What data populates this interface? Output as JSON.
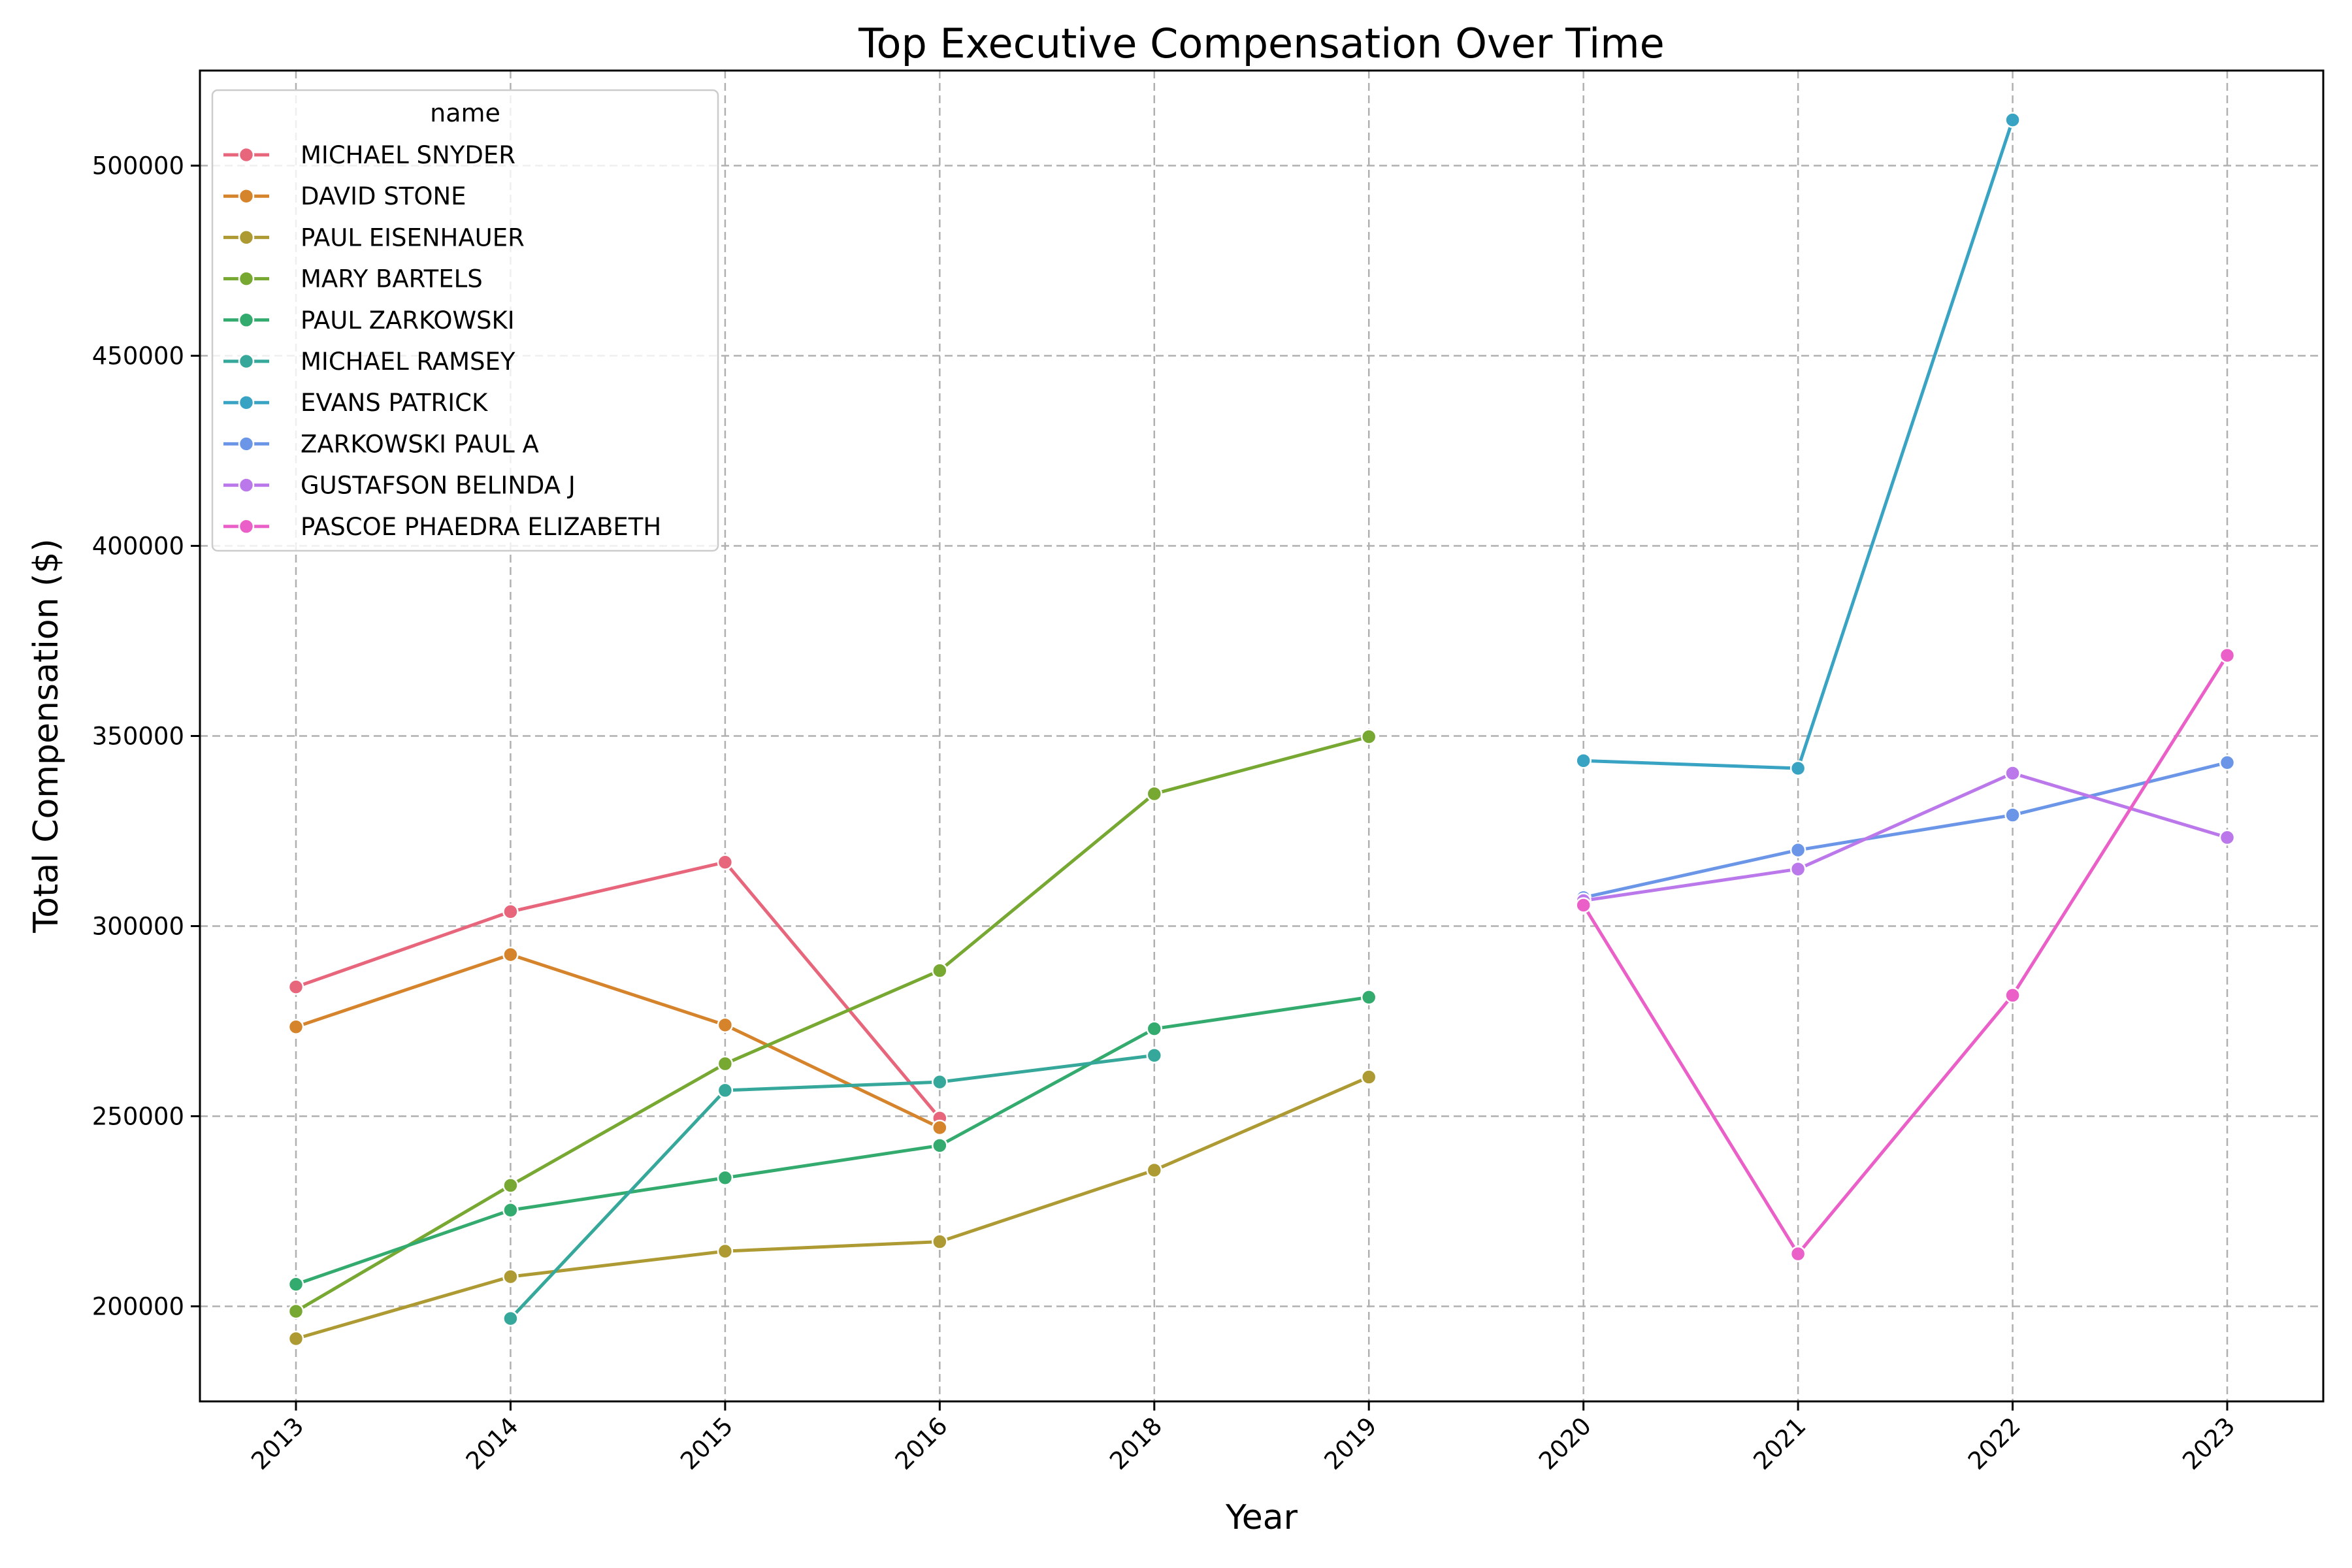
{
  "chart_data": {
    "type": "line",
    "title": "Top Executive Compensation Over Time",
    "xlabel": "Year",
    "ylabel": "Total Compensation ($)",
    "categories": [
      "2013",
      "2014",
      "2015",
      "2016",
      "2018",
      "2019",
      "2020",
      "2021",
      "2022",
      "2023"
    ],
    "ylim": [
      175000,
      525000
    ],
    "yticks": [
      200000,
      250000,
      300000,
      350000,
      400000,
      450000,
      500000
    ],
    "grid": true,
    "legend": {
      "title": "name",
      "placement": "top-left"
    },
    "series": [
      {
        "name": "MICHAEL SNYDER",
        "color": "#e8667c",
        "points": [
          [
            "2013",
            284000
          ],
          [
            "2014",
            303800
          ],
          [
            "2015",
            316800
          ],
          [
            "2016",
            249500
          ]
        ]
      },
      {
        "name": "DAVID STONE",
        "color": "#d6842c",
        "points": [
          [
            "2013",
            273500
          ],
          [
            "2014",
            292500
          ],
          [
            "2015",
            274000
          ],
          [
            "2016",
            247000
          ]
        ]
      },
      {
        "name": "PAUL EISENHAUER",
        "color": "#ae9a33",
        "points": [
          [
            "2013",
            191500
          ],
          [
            "2014",
            207800
          ],
          [
            "2015",
            214500
          ],
          [
            "2016",
            217000
          ],
          [
            "2018",
            235800
          ],
          [
            "2019",
            260300
          ]
        ]
      },
      {
        "name": "MARY BARTELS",
        "color": "#77a832",
        "points": [
          [
            "2013",
            198700
          ],
          [
            "2014",
            231800
          ],
          [
            "2015",
            263800
          ],
          [
            "2016",
            288300
          ],
          [
            "2018",
            334800
          ],
          [
            "2019",
            349800
          ]
        ]
      },
      {
        "name": "PAUL ZARKOWSKI",
        "color": "#34ab6e",
        "points": [
          [
            "2013",
            205800
          ],
          [
            "2014",
            225300
          ],
          [
            "2015",
            233800
          ],
          [
            "2016",
            242300
          ],
          [
            "2018",
            273000
          ],
          [
            "2019",
            281300
          ]
        ]
      },
      {
        "name": "MICHAEL RAMSEY",
        "color": "#35a89b",
        "points": [
          [
            "2014",
            196800
          ],
          [
            "2015",
            256800
          ],
          [
            "2016",
            259000
          ],
          [
            "2018",
            266000
          ]
        ]
      },
      {
        "name": "EVANS PATRICK",
        "color": "#38a3c2",
        "points": [
          [
            "2020",
            343500
          ],
          [
            "2021",
            341500
          ],
          [
            "2022",
            512000
          ]
        ]
      },
      {
        "name": "ZARKOWSKI PAUL A",
        "color": "#6b96e8",
        "points": [
          [
            "2020",
            307500
          ],
          [
            "2021",
            320000
          ],
          [
            "2022",
            329200
          ],
          [
            "2023",
            343000
          ]
        ]
      },
      {
        "name": "GUSTAFSON BELINDA J",
        "color": "#bb78ea",
        "points": [
          [
            "2020",
            306700
          ],
          [
            "2021",
            315000
          ],
          [
            "2022",
            340200
          ],
          [
            "2023",
            323300
          ]
        ]
      },
      {
        "name": "PASCOE PHAEDRA ELIZABETH",
        "color": "#ea5fc8",
        "points": [
          [
            "2020",
            305500
          ],
          [
            "2021",
            213800
          ],
          [
            "2022",
            281800
          ],
          [
            "2023",
            371200
          ]
        ]
      }
    ]
  }
}
